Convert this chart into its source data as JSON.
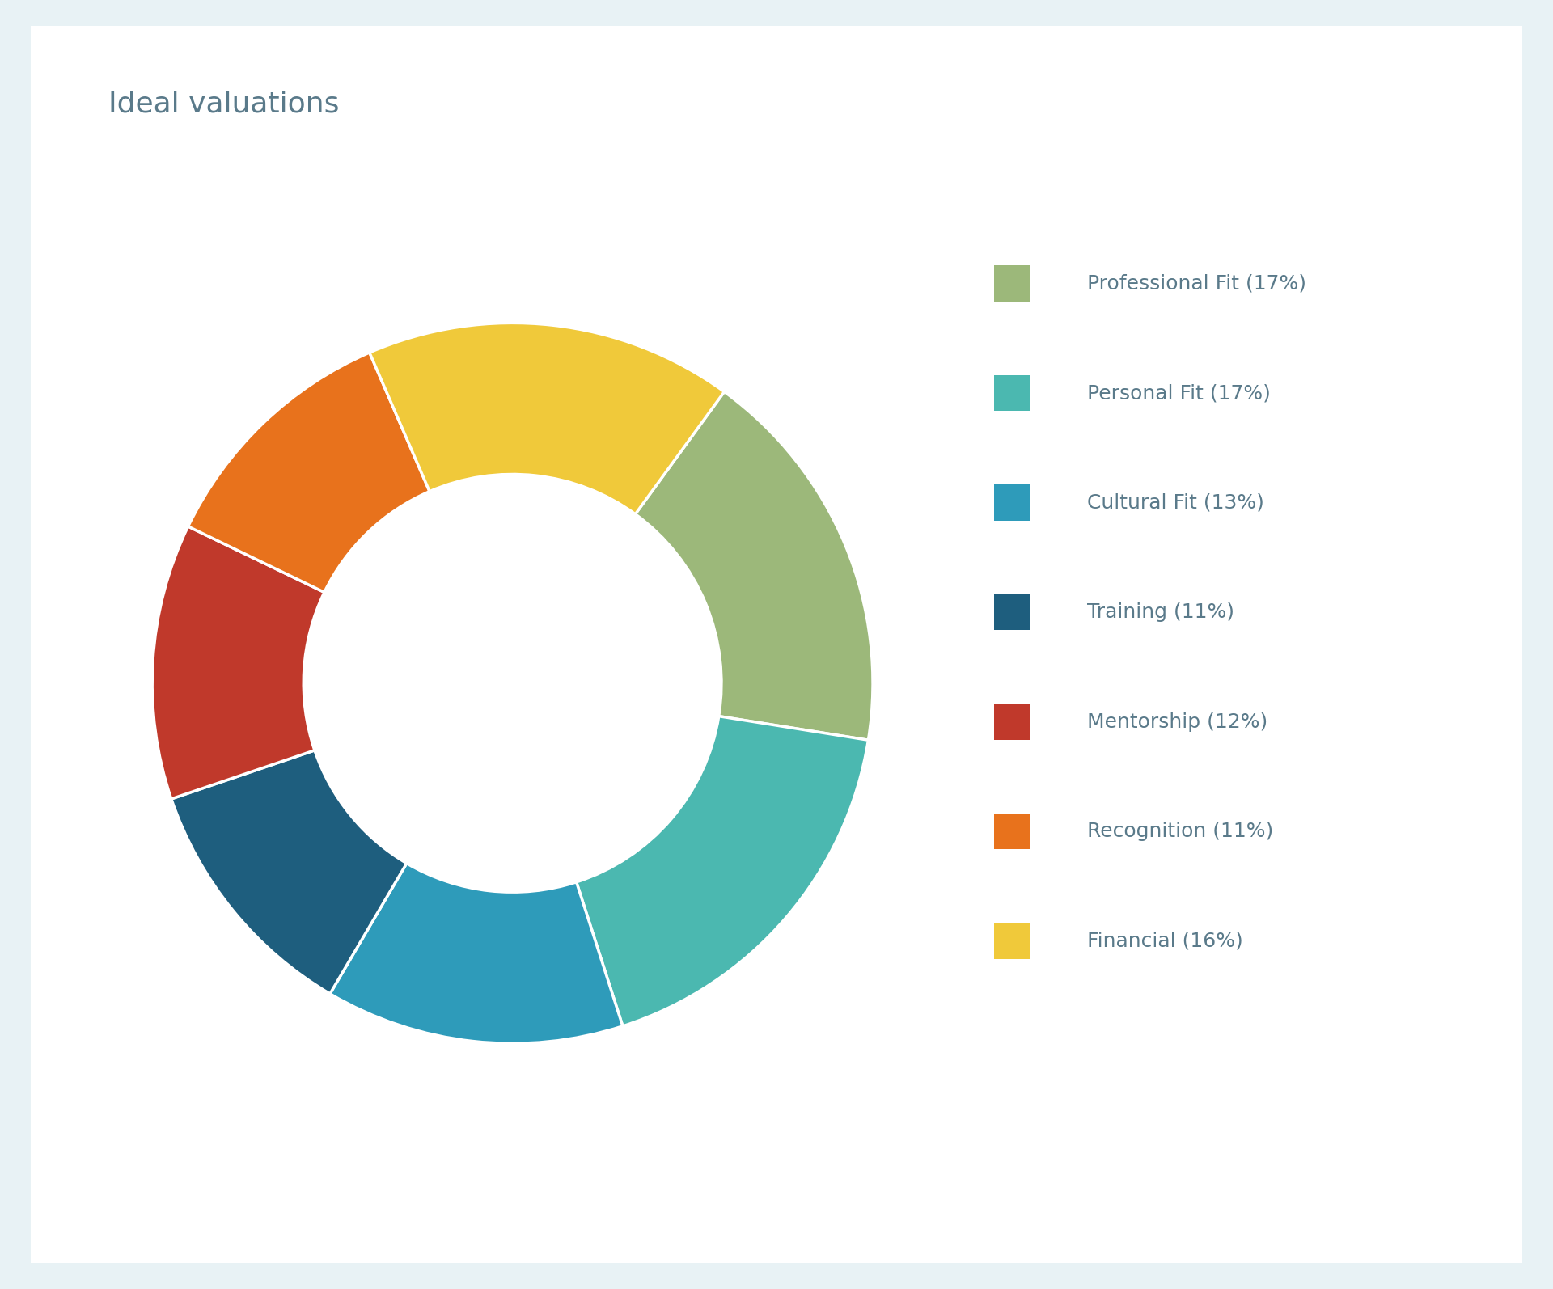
{
  "title": "Ideal valuations",
  "title_fontsize": 26,
  "title_color": "#5a7a8a",
  "segments": [
    {
      "label": "Professional Fit (17%)",
      "value": 17,
      "color": "#9cb87a"
    },
    {
      "label": "Personal Fit (17%)",
      "value": 17,
      "color": "#4bb8b0"
    },
    {
      "label": "Cultural Fit (13%)",
      "value": 13,
      "color": "#2e9bba"
    },
    {
      "label": "Training (11%)",
      "value": 11,
      "color": "#1e5e7e"
    },
    {
      "label": "Mentorship (12%)",
      "value": 12,
      "color": "#c0392b"
    },
    {
      "label": "Recognition (11%)",
      "value": 11,
      "color": "#e8721c"
    },
    {
      "label": "Financial (16%)",
      "value": 16,
      "color": "#f0c93a"
    }
  ],
  "background_color": "#e8f2f5",
  "card_color": "#ffffff",
  "donut_width": 0.42,
  "legend_fontsize": 18,
  "start_angle": 54,
  "counterclock": false
}
